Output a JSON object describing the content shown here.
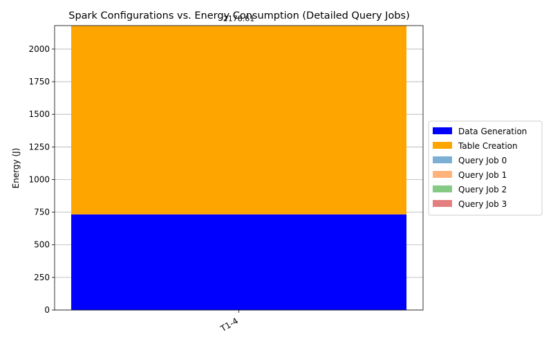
{
  "chart_data": {
    "type": "bar",
    "stacked": true,
    "title": "Spark Configurations vs. Energy Consumption (Detailed Query Jobs)",
    "xlabel": "",
    "ylabel": "Energy (J)",
    "categories": [
      "T1-4"
    ],
    "ylim": [
      0,
      2180
    ],
    "yticks": [
      0,
      250,
      500,
      750,
      1000,
      1250,
      1500,
      1750,
      2000
    ],
    "grid": "y",
    "legend": "center-right",
    "series": [
      {
        "name": "Data Generation",
        "values": [
          733
        ],
        "color": "#0000ff"
      },
      {
        "name": "Table Creation",
        "values": [
          1445
        ],
        "color": "#ffa500"
      },
      {
        "name": "Query Job 0",
        "values": [
          0
        ],
        "color": "#7bafd4"
      },
      {
        "name": "Query Job 1",
        "values": [
          0
        ],
        "color": "#ffb27a"
      },
      {
        "name": "Query Job 2",
        "values": [
          0
        ],
        "color": "#84c984"
      },
      {
        "name": "Query Job 3",
        "values": [
          0
        ],
        "color": "#e47f7f"
      }
    ],
    "total_labels": [
      "2178.61"
    ]
  }
}
